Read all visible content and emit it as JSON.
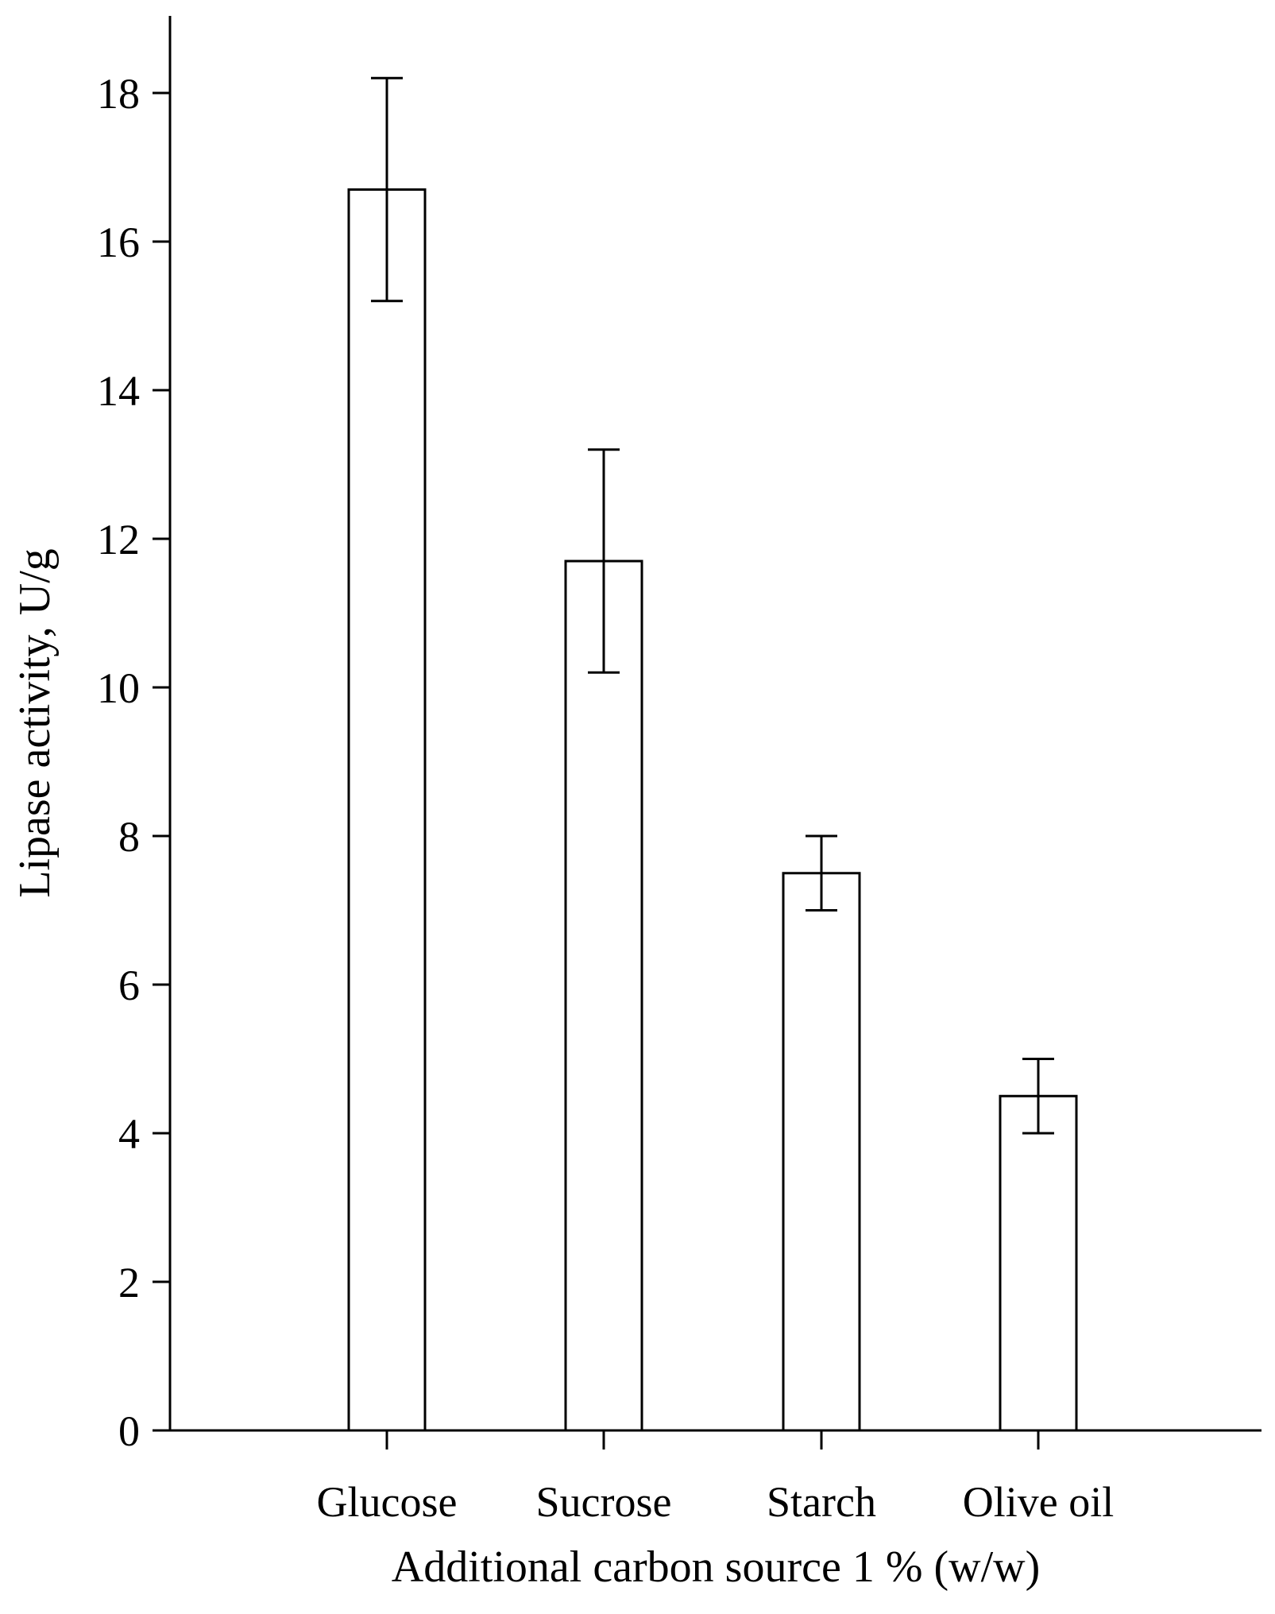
{
  "chart_data": {
    "type": "bar",
    "xlabel": "Additional carbon source 1 % (w/w)",
    "ylabel": "Lipase activity, U/g",
    "categories": [
      "Glucose",
      "Sucrose",
      "Starch",
      "Olive oil"
    ],
    "values": [
      16.7,
      11.7,
      7.5,
      4.5
    ],
    "error": [
      1.5,
      1.5,
      0.5,
      0.5
    ],
    "ylim": [
      0,
      19
    ],
    "yticks": [
      0,
      2,
      4,
      6,
      8,
      10,
      12,
      14,
      16,
      18
    ],
    "grid": false,
    "legend": "none"
  }
}
